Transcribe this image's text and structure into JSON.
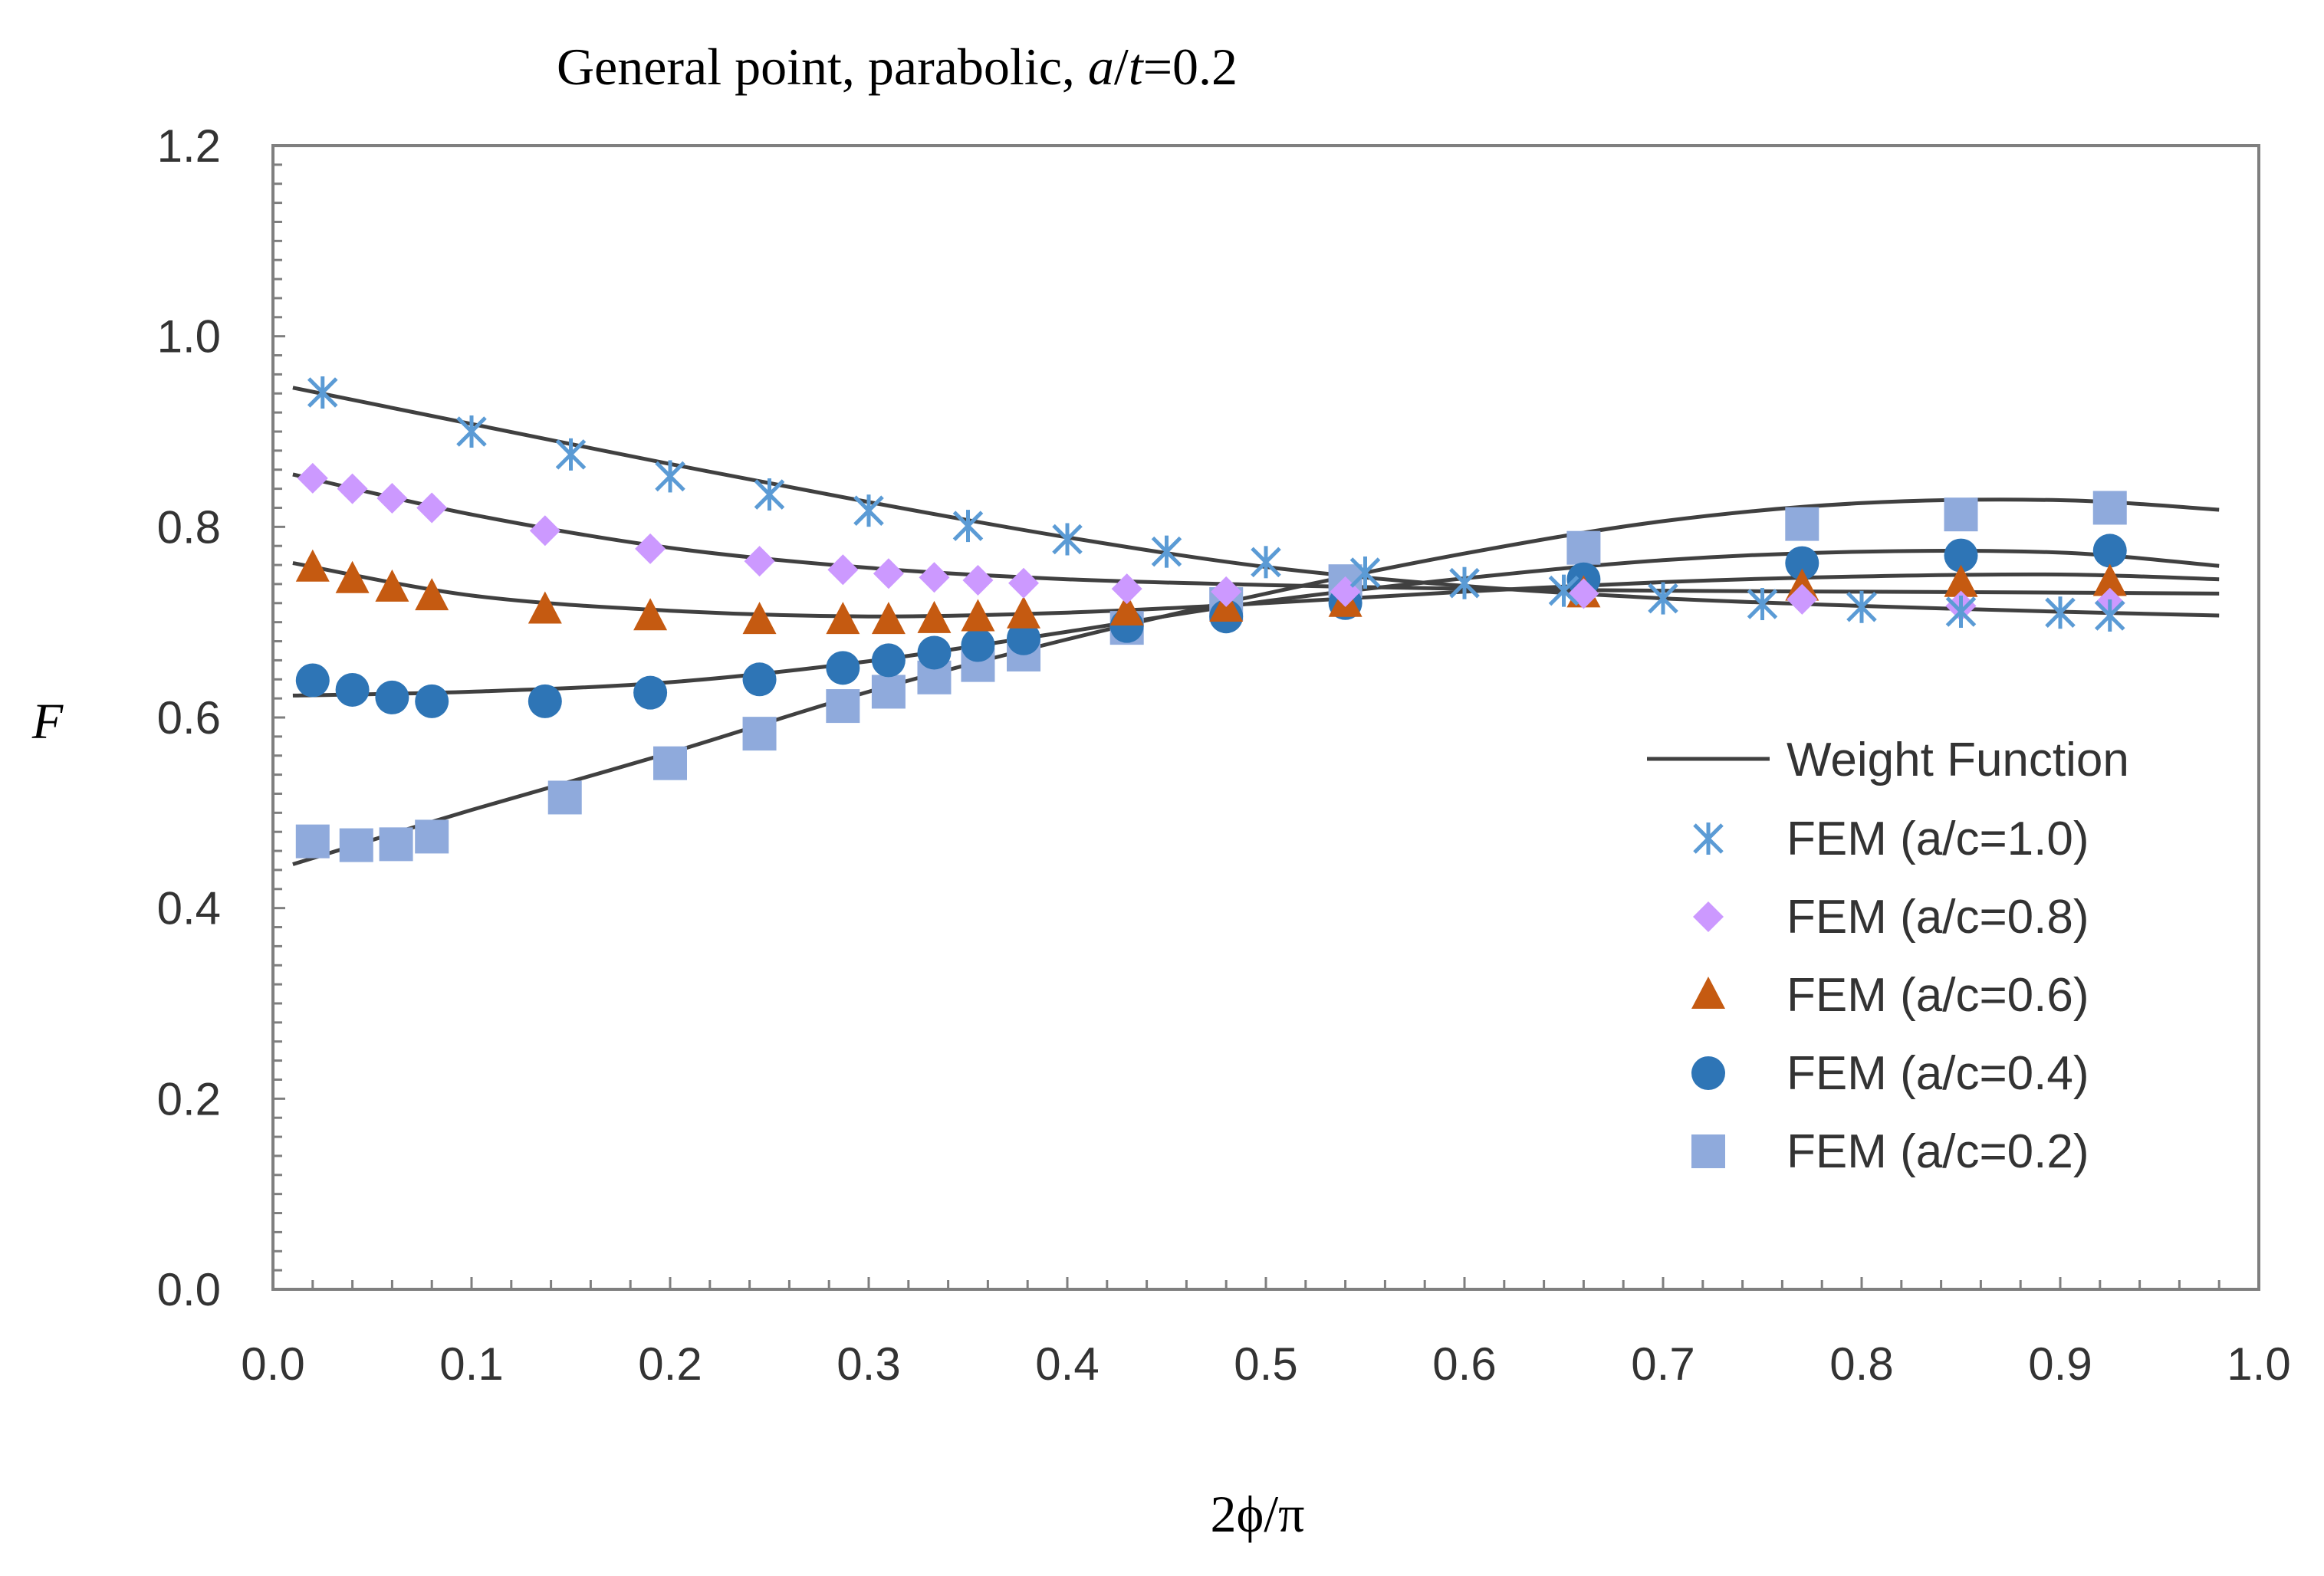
{
  "chart_data": {
    "type": "scatter",
    "title_main": "General point, parabolic, ",
    "title_a": "a",
    "title_slash": "/",
    "title_t": "t",
    "title_tail": "=0.2",
    "xlabel": "2ϕ/π",
    "ylabel": "F",
    "xlim": [
      0.0,
      1.0
    ],
    "ylim": [
      0.0,
      1.2
    ],
    "xticks": [
      "0.0",
      "0.1",
      "0.2",
      "0.3",
      "0.4",
      "0.5",
      "0.6",
      "0.7",
      "0.8",
      "0.9",
      "1.0"
    ],
    "yticks": [
      "0.0",
      "0.2",
      "0.4",
      "0.6",
      "0.8",
      "1.0",
      "1.2"
    ],
    "legend_placement": "right",
    "grid": false,
    "curve_label": "Weight Function",
    "curves": [
      {
        "x": [
          0.01,
          0.1,
          0.2,
          0.3,
          0.4,
          0.5,
          0.6,
          0.7,
          0.8,
          0.9,
          0.98
        ],
        "y": [
          0.946,
          0.908,
          0.866,
          0.826,
          0.789,
          0.758,
          0.738,
          0.725,
          0.717,
          0.711,
          0.707
        ]
      },
      {
        "x": [
          0.01,
          0.1,
          0.2,
          0.3,
          0.4,
          0.5,
          0.6,
          0.7,
          0.8,
          0.9,
          0.98
        ],
        "y": [
          0.855,
          0.813,
          0.778,
          0.757,
          0.745,
          0.739,
          0.735,
          0.733,
          0.732,
          0.731,
          0.73
        ]
      },
      {
        "x": [
          0.01,
          0.1,
          0.2,
          0.3,
          0.4,
          0.5,
          0.6,
          0.7,
          0.8,
          0.9,
          0.98
        ],
        "y": [
          0.762,
          0.728,
          0.712,
          0.706,
          0.71,
          0.72,
          0.732,
          0.742,
          0.748,
          0.75,
          0.745
        ]
      },
      {
        "x": [
          0.01,
          0.1,
          0.2,
          0.3,
          0.4,
          0.5,
          0.6,
          0.7,
          0.8,
          0.9,
          0.98
        ],
        "y": [
          0.623,
          0.627,
          0.637,
          0.659,
          0.69,
          0.722,
          0.746,
          0.765,
          0.774,
          0.773,
          0.759
        ]
      },
      {
        "x": [
          0.01,
          0.1,
          0.2,
          0.3,
          0.4,
          0.5,
          0.6,
          0.7,
          0.8,
          0.9,
          0.98
        ],
        "y": [
          0.446,
          0.503,
          0.563,
          0.627,
          0.682,
          0.73,
          0.772,
          0.806,
          0.825,
          0.828,
          0.818
        ]
      }
    ],
    "series": [
      {
        "name": "FEM (a/c=1.0)",
        "marker": "asterisk",
        "color": "#5B9BD5",
        "x": [
          0.025,
          0.1,
          0.15,
          0.2,
          0.25,
          0.3,
          0.35,
          0.4,
          0.45,
          0.5,
          0.55,
          0.6,
          0.65,
          0.7,
          0.75,
          0.8,
          0.85,
          0.9,
          0.925
        ],
        "y": [
          0.941,
          0.9,
          0.876,
          0.853,
          0.834,
          0.817,
          0.801,
          0.787,
          0.774,
          0.763,
          0.752,
          0.741,
          0.733,
          0.725,
          0.719,
          0.716,
          0.711,
          0.71,
          0.707
        ]
      },
      {
        "name": "FEM (a/c=0.8)",
        "marker": "diamond",
        "color": "#CC99FF",
        "x": [
          0.02,
          0.04,
          0.06,
          0.08,
          0.137,
          0.19,
          0.245,
          0.287,
          0.31,
          0.333,
          0.355,
          0.378,
          0.43,
          0.48,
          0.54,
          0.66,
          0.77,
          0.85,
          0.925
        ],
        "y": [
          0.851,
          0.84,
          0.83,
          0.82,
          0.796,
          0.777,
          0.764,
          0.755,
          0.751,
          0.747,
          0.744,
          0.741,
          0.735,
          0.732,
          0.732,
          0.73,
          0.724,
          0.717,
          0.72
        ]
      },
      {
        "name": "FEM (a/c=0.6)",
        "marker": "triangle",
        "color": "#C55A11",
        "x": [
          0.02,
          0.04,
          0.06,
          0.08,
          0.137,
          0.19,
          0.245,
          0.287,
          0.31,
          0.333,
          0.355,
          0.378,
          0.43,
          0.48,
          0.54,
          0.66,
          0.77,
          0.85,
          0.925
        ],
        "y": [
          0.757,
          0.745,
          0.736,
          0.727,
          0.713,
          0.706,
          0.702,
          0.702,
          0.702,
          0.703,
          0.705,
          0.708,
          0.711,
          0.715,
          0.72,
          0.73,
          0.737,
          0.741,
          0.742
        ]
      },
      {
        "name": "FEM (a/c=0.4)",
        "marker": "circle",
        "color": "#2E75B6",
        "x": [
          0.02,
          0.04,
          0.06,
          0.08,
          0.137,
          0.19,
          0.245,
          0.287,
          0.31,
          0.333,
          0.355,
          0.378,
          0.43,
          0.48,
          0.54,
          0.66,
          0.77,
          0.85,
          0.925
        ],
        "y": [
          0.639,
          0.629,
          0.621,
          0.617,
          0.617,
          0.626,
          0.64,
          0.652,
          0.66,
          0.668,
          0.676,
          0.683,
          0.696,
          0.706,
          0.72,
          0.745,
          0.762,
          0.77,
          0.775
        ]
      },
      {
        "name": "FEM (a/c=0.2)",
        "marker": "square",
        "color": "#8FAADC",
        "x": [
          0.02,
          0.042,
          0.062,
          0.08,
          0.147,
          0.2,
          0.245,
          0.287,
          0.31,
          0.333,
          0.355,
          0.378,
          0.43,
          0.48,
          0.54,
          0.66,
          0.77,
          0.85,
          0.925
        ],
        "y": [
          0.47,
          0.466,
          0.467,
          0.475,
          0.516,
          0.552,
          0.583,
          0.612,
          0.627,
          0.642,
          0.655,
          0.666,
          0.694,
          0.719,
          0.743,
          0.778,
          0.803,
          0.813,
          0.82
        ]
      }
    ]
  }
}
